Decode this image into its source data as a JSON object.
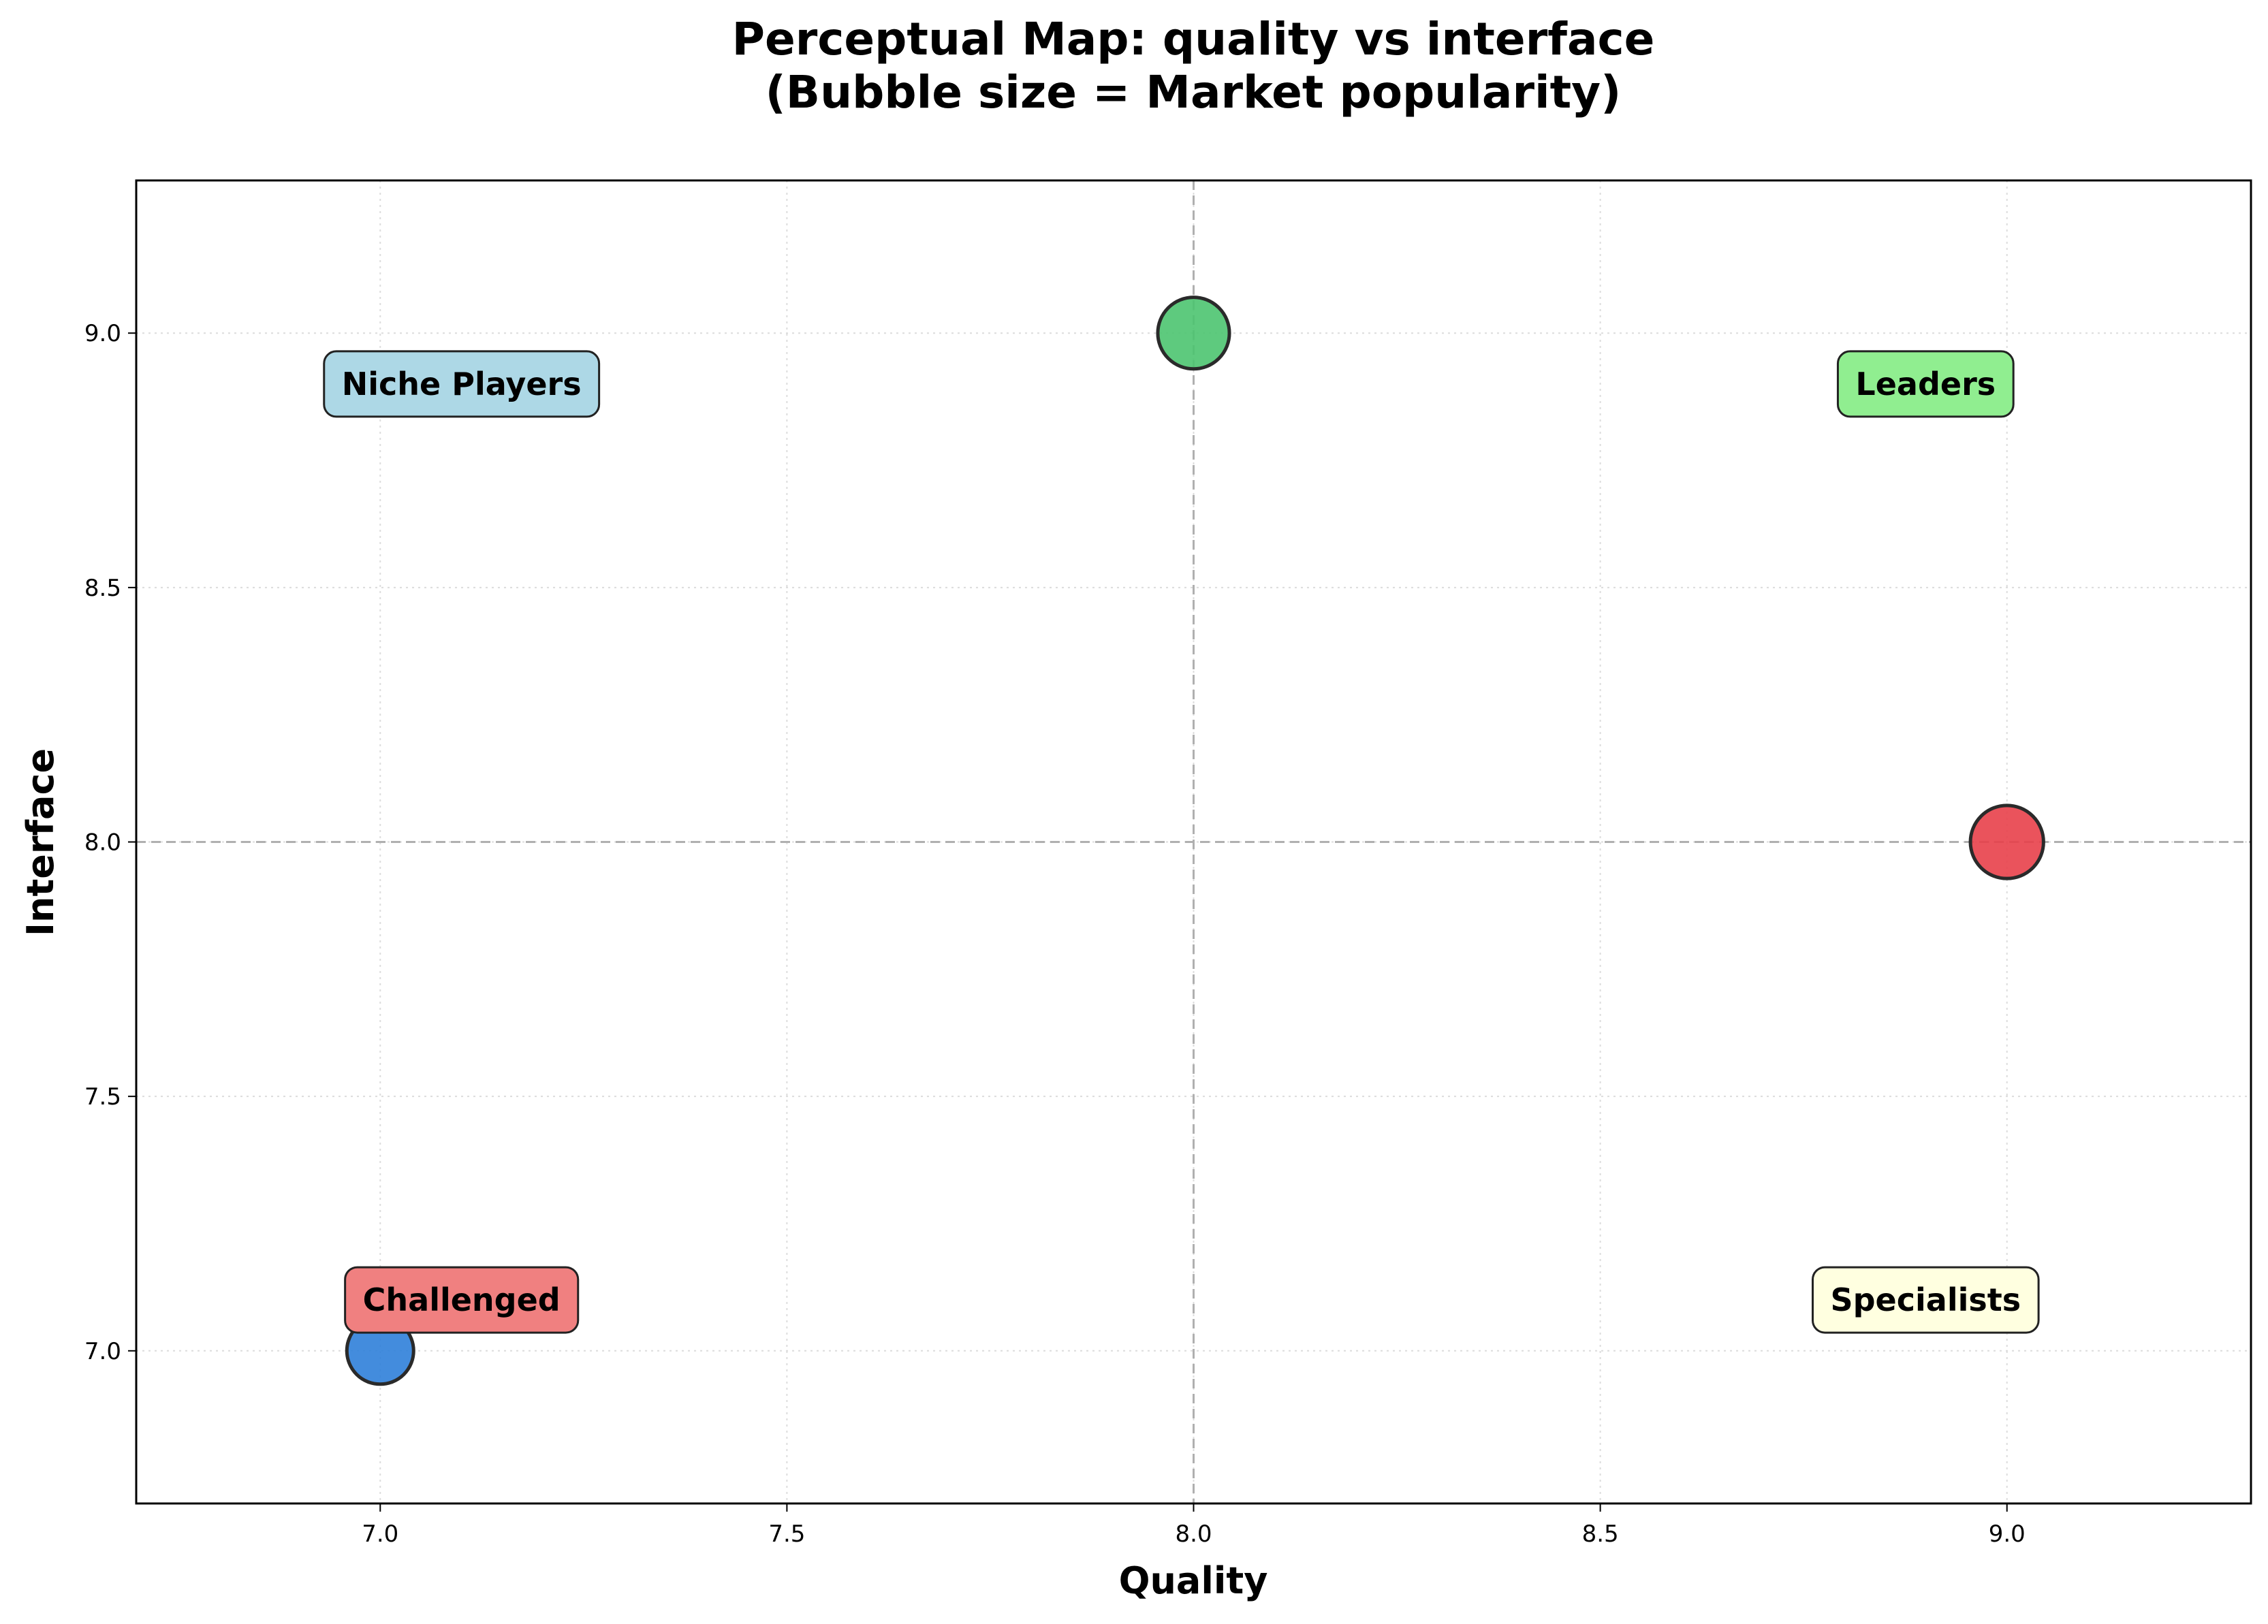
{
  "chart_data": {
    "type": "scatter",
    "title_line1": "Perceptual Map: quality vs interface",
    "title_line2": "(Bubble size = Market popularity)",
    "xlabel": "Quality",
    "ylabel": "Interface",
    "xlim": [
      6.7,
      9.3
    ],
    "ylim": [
      6.7,
      9.3
    ],
    "xticks": [
      7.0,
      7.5,
      8.0,
      8.5,
      9.0
    ],
    "yticks": [
      7.0,
      7.5,
      8.0,
      8.5,
      9.0
    ],
    "xtick_labels": [
      "7.0",
      "7.5",
      "8.0",
      "8.5",
      "9.0"
    ],
    "ytick_labels": [
      "7.0",
      "7.5",
      "8.0",
      "8.5",
      "9.0"
    ],
    "grid": true,
    "reference_lines": {
      "x": 8.0,
      "y": 8.0
    },
    "points": [
      {
        "x": 7.0,
        "y": 7.0,
        "popularity": 1.0,
        "color": "#2f7fd9"
      },
      {
        "x": 8.0,
        "y": 9.0,
        "popularity": 1.15,
        "color": "#4cc470"
      },
      {
        "x": 9.0,
        "y": 8.0,
        "popularity": 1.2,
        "color": "#e8404a"
      }
    ],
    "quadrant_labels": [
      {
        "text": "Niche Players",
        "x": 7.1,
        "y": 8.9,
        "color": "#add8e6"
      },
      {
        "text": "Leaders",
        "x": 8.9,
        "y": 8.9,
        "color": "#90ee90"
      },
      {
        "text": "Challenged",
        "x": 7.1,
        "y": 7.1,
        "color": "#f08080"
      },
      {
        "text": "Specialists",
        "x": 8.9,
        "y": 7.1,
        "color": "#ffffe0"
      }
    ]
  }
}
